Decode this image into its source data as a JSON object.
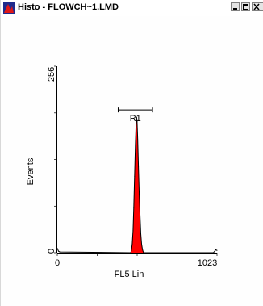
{
  "window": {
    "title": "Histo - FLOWCH~1.LMD",
    "controls": {
      "minimize": "minimize",
      "maximize": "maximize",
      "close": "close"
    }
  },
  "chart_data": {
    "type": "histogram",
    "title": "",
    "xlabel": "FL5 Lin",
    "ylabel": "Events",
    "xlim": [
      0,
      1023
    ],
    "ylim": [
      0,
      256
    ],
    "x_ticks": [
      0,
      1023
    ],
    "y_ticks": [
      0,
      256
    ],
    "grid": false,
    "fill_color": "#ff0000",
    "line_color": "#000000",
    "bins": [
      {
        "x": 0,
        "y": 6
      },
      {
        "x": 8,
        "y": 2
      },
      {
        "x": 16,
        "y": 1
      },
      {
        "x": 470,
        "y": 0
      },
      {
        "x": 475,
        "y": 3
      },
      {
        "x": 480,
        "y": 12
      },
      {
        "x": 485,
        "y": 30
      },
      {
        "x": 490,
        "y": 62
      },
      {
        "x": 495,
        "y": 105
      },
      {
        "x": 500,
        "y": 148
      },
      {
        "x": 505,
        "y": 178
      },
      {
        "x": 508,
        "y": 186
      },
      {
        "x": 511,
        "y": 180
      },
      {
        "x": 515,
        "y": 155
      },
      {
        "x": 520,
        "y": 118
      },
      {
        "x": 525,
        "y": 80
      },
      {
        "x": 530,
        "y": 50
      },
      {
        "x": 535,
        "y": 26
      },
      {
        "x": 540,
        "y": 12
      },
      {
        "x": 545,
        "y": 5
      },
      {
        "x": 550,
        "y": 1
      },
      {
        "x": 555,
        "y": 0
      },
      {
        "x": 1000,
        "y": 0
      },
      {
        "x": 1008,
        "y": 2
      },
      {
        "x": 1016,
        "y": 4
      },
      {
        "x": 1023,
        "y": 3
      }
    ],
    "regions": [
      {
        "name": "R1",
        "x_start": 390,
        "x_end": 610,
        "y": 196
      }
    ]
  }
}
